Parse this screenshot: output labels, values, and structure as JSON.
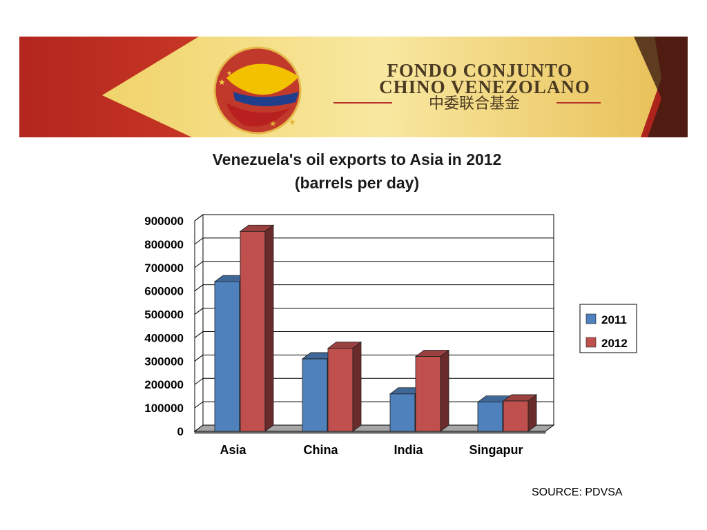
{
  "banner": {
    "title_line1": "FONDO CONJUNTO",
    "title_line2": "CHINO VENEZOLANO",
    "subtitle": "中委联合基金",
    "logo": "china-venezuela-emblem"
  },
  "source": "SOURCE: PDVSA",
  "colors": {
    "series_2011": "#4f81bd",
    "series_2012": "#c0504d",
    "floor": "#a6a6a6",
    "grid": "#000000"
  },
  "chart_data": {
    "type": "bar",
    "title": "Venezuela's oil exports to Asia in 2012",
    "subtitle": "(barrels per day)",
    "categories": [
      "Asia",
      "China",
      "India",
      "Singapur"
    ],
    "series": [
      {
        "name": "2011",
        "values": [
          640000,
          310000,
          160000,
          125000
        ]
      },
      {
        "name": "2012",
        "values": [
          855000,
          355000,
          320000,
          130000
        ]
      }
    ],
    "ylim": [
      0,
      900000
    ],
    "yticks": [
      0,
      100000,
      200000,
      300000,
      400000,
      500000,
      600000,
      700000,
      800000,
      900000
    ],
    "grid": true,
    "legend_position": "right",
    "style": "3d-clustered-column"
  }
}
